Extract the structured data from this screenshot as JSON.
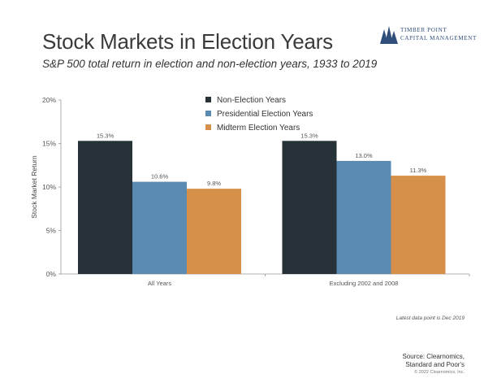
{
  "title": "Stock Markets in Election Years",
  "subtitle": "S&P 500 total return in election and non-election years, 1933 to 2019",
  "logo": {
    "line1": "TIMBER POINT",
    "line2": "CAPITAL MANAGEMENT"
  },
  "note": "Latest data point is Dec 2019",
  "source": {
    "line1": "Source: Clearnomics,",
    "line2": "Standard and Poor's"
  },
  "copyright": "© 2022 Clearnomics, Inc.",
  "colors": {
    "non_election": "#263238",
    "presidential": "#5b8bb0",
    "midterm": "#d7904a",
    "axis": "#999999"
  },
  "chart_data": {
    "type": "bar",
    "categories": [
      "All Years",
      "Excluding 2002 and 2008"
    ],
    "series": [
      {
        "name": "Non-Election Years",
        "values": [
          15.3,
          15.3
        ],
        "labels": [
          "15.3%",
          "15.3%"
        ]
      },
      {
        "name": "Presidential Election Years",
        "values": [
          10.6,
          13.0
        ],
        "labels": [
          "10.6%",
          "13.0%"
        ]
      },
      {
        "name": "Midterm Election Years",
        "values": [
          9.8,
          11.3
        ],
        "labels": [
          "9.8%",
          "11.3%"
        ]
      }
    ],
    "ylabel": "Stock Market Return",
    "ylim": [
      0,
      20
    ],
    "yticks": [
      0,
      5,
      10,
      15,
      20
    ],
    "ytick_labels": [
      "0%",
      "5%",
      "10%",
      "15%",
      "20%"
    ],
    "legend_position": "top-center",
    "grid": false
  }
}
